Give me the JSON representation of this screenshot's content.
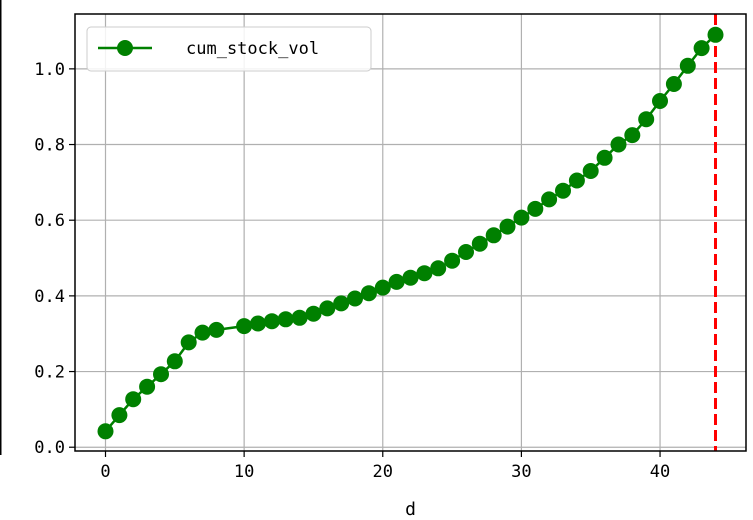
{
  "chart_data": {
    "type": "line",
    "xlabel": "d",
    "ylabel": "",
    "xlim": [
      -2.2,
      46.2
    ],
    "ylim": [
      -0.01,
      1.145
    ],
    "xticks": [
      0,
      10,
      20,
      30,
      40
    ],
    "yticks": [
      0.0,
      0.2,
      0.4,
      0.6,
      0.8,
      1.0
    ],
    "xtick_labels": [
      "0",
      "10",
      "20",
      "30",
      "40"
    ],
    "ytick_labels": [
      "0.0",
      "0.2",
      "0.4",
      "0.6",
      "0.8",
      "1.0"
    ],
    "grid": true,
    "legend_position": "top-left",
    "series": [
      {
        "name": "cum_stock_vol",
        "color": "#008000",
        "marker": "circle",
        "x": [
          0,
          1,
          2,
          3,
          4,
          5,
          6,
          7,
          8,
          9,
          10,
          11,
          12,
          13,
          14,
          15,
          16,
          17,
          18,
          19,
          20,
          21,
          22,
          23,
          24,
          25,
          26,
          27,
          28,
          29,
          30,
          31,
          32,
          33,
          34,
          35,
          36,
          37,
          38,
          39,
          40,
          41,
          42,
          43,
          44
        ],
        "values": [
          0.042,
          0.085,
          0.127,
          0.16,
          0.193,
          0.227,
          0.277,
          0.303,
          0.31,
          null,
          0.32,
          0.327,
          0.333,
          0.338,
          0.342,
          0.353,
          0.367,
          0.38,
          0.393,
          0.407,
          0.422,
          0.437,
          0.448,
          0.46,
          0.473,
          0.493,
          0.516,
          0.538,
          0.56,
          0.583,
          0.607,
          0.63,
          0.655,
          0.678,
          0.705,
          0.73,
          0.765,
          0.8,
          0.825,
          0.867,
          0.915,
          0.96,
          1.008,
          1.055,
          1.09
        ]
      }
    ],
    "vline": {
      "x": 44,
      "color": "#ff0000",
      "style": "dashed"
    }
  }
}
